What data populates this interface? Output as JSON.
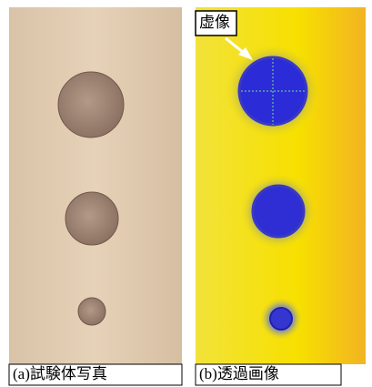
{
  "panel_a": {
    "caption": "(a)試験体写真"
  },
  "panel_b": {
    "annotation": "虚像",
    "caption": "(b)透過画像"
  }
}
